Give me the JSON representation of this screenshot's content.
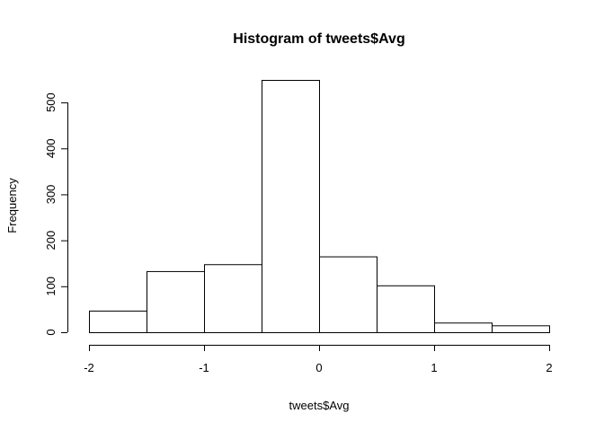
{
  "chart_data": {
    "type": "bar",
    "title": "Histogram of tweets$Avg",
    "xlabel": "tweets$Avg",
    "ylabel": "Frequency",
    "bins": [
      {
        "x0": -2.0,
        "x1": -1.5,
        "count": 47
      },
      {
        "x0": -1.5,
        "x1": -1.0,
        "count": 133
      },
      {
        "x0": -1.0,
        "x1": -0.5,
        "count": 148
      },
      {
        "x0": -0.5,
        "x1": 0.0,
        "count": 549
      },
      {
        "x0": 0.0,
        "x1": 0.5,
        "count": 165
      },
      {
        "x0": 0.5,
        "x1": 1.0,
        "count": 102
      },
      {
        "x0": 1.0,
        "x1": 1.5,
        "count": 21
      },
      {
        "x0": 1.5,
        "x1": 2.0,
        "count": 15
      }
    ],
    "xlim": [
      -2,
      2
    ],
    "ylim": [
      0,
      549
    ],
    "x_ticks": [
      "-2",
      "-1",
      "0",
      "1",
      "2"
    ],
    "y_ticks": [
      "0",
      "100",
      "200",
      "300",
      "400",
      "500"
    ],
    "grid": false,
    "legend": "none",
    "bar_fill": "#ffffff",
    "bar_stroke": "#000000"
  }
}
